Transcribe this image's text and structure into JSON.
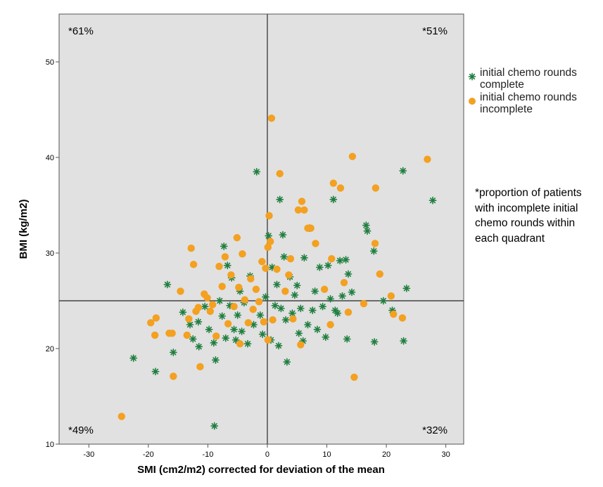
{
  "chart_data": {
    "type": "scatter",
    "xlabel": "SMI (cm2/m2) corrected for deviation of the mean",
    "ylabel": "BMI (kg/m2)",
    "xlim": [
      -35,
      33
    ],
    "ylim": [
      10,
      55
    ],
    "x_ticks": [
      -30,
      -20,
      -10,
      0,
      10,
      20,
      30
    ],
    "y_ticks": [
      10,
      20,
      30,
      40,
      50
    ],
    "reference_lines": {
      "x": 0,
      "y": 25
    },
    "quadrant_labels": {
      "top_left": "*61%",
      "top_right": "*51%",
      "bottom_left": "*49%",
      "bottom_right": "*32%"
    },
    "annotation": "*proportion of patients with incomplete initial chemo rounds within each quadrant",
    "legend_position": "right",
    "colors": {
      "complete": "#1f7f3f",
      "incomplete": "#f4a020",
      "plot_background": "#e1e1e1"
    },
    "series": [
      {
        "name": "initial chemo rounds complete",
        "marker": "star",
        "color": "#1f7f3f",
        "points": [
          [
            -22.5,
            19
          ],
          [
            -18.8,
            17.6
          ],
          [
            -15.8,
            19.6
          ],
          [
            -16.8,
            26.7
          ],
          [
            -14.2,
            23.8
          ],
          [
            -13,
            22.5
          ],
          [
            -12.5,
            21
          ],
          [
            -11.5,
            20.2
          ],
          [
            -11.6,
            22.8
          ],
          [
            -10.5,
            24.4
          ],
          [
            -9.8,
            22
          ],
          [
            -9,
            20.6
          ],
          [
            -8.7,
            18.8
          ],
          [
            -8.9,
            11.9
          ],
          [
            -8,
            25
          ],
          [
            -7.6,
            23.4
          ],
          [
            -7.3,
            30.7
          ],
          [
            -7,
            21.1
          ],
          [
            -6.7,
            28.7
          ],
          [
            -6.3,
            24.5
          ],
          [
            -6,
            27.4
          ],
          [
            -5.6,
            22
          ],
          [
            -5.3,
            20.9
          ],
          [
            -5,
            23.5
          ],
          [
            -4.6,
            26
          ],
          [
            -4.3,
            21.8
          ],
          [
            -3.9,
            24.8
          ],
          [
            -3.3,
            20.5
          ],
          [
            -2.9,
            27.6
          ],
          [
            -2.3,
            22.5
          ],
          [
            -1.8,
            38.5
          ],
          [
            -1.2,
            23.5
          ],
          [
            -0.8,
            21.5
          ],
          [
            -0.3,
            25.4
          ],
          [
            0.2,
            31.8
          ],
          [
            0.6,
            20.9
          ],
          [
            0.8,
            28.5
          ],
          [
            1.3,
            24.5
          ],
          [
            1.6,
            26.7
          ],
          [
            1.9,
            20.3
          ],
          [
            2.1,
            35.6
          ],
          [
            2.3,
            24.2
          ],
          [
            2.6,
            31.9
          ],
          [
            2.8,
            29.6
          ],
          [
            3.1,
            23
          ],
          [
            3.3,
            18.6
          ],
          [
            3.8,
            27.5
          ],
          [
            4.2,
            23.7
          ],
          [
            4.6,
            25.6
          ],
          [
            5,
            26.6
          ],
          [
            5.3,
            21.6
          ],
          [
            5.6,
            24.2
          ],
          [
            6,
            20.8
          ],
          [
            6.2,
            29.5
          ],
          [
            6.8,
            22.5
          ],
          [
            7.1,
            32.6
          ],
          [
            7.6,
            24
          ],
          [
            8,
            26
          ],
          [
            8.4,
            22
          ],
          [
            8.8,
            28.5
          ],
          [
            9.3,
            24.4
          ],
          [
            9.8,
            21.2
          ],
          [
            10.2,
            28.7
          ],
          [
            10.6,
            25.2
          ],
          [
            11.1,
            35.6
          ],
          [
            11.4,
            24
          ],
          [
            11.8,
            23.7
          ],
          [
            12.2,
            29.2
          ],
          [
            12.6,
            25.5
          ],
          [
            13.2,
            29.3
          ],
          [
            13.6,
            27.8
          ],
          [
            13.4,
            21
          ],
          [
            14.2,
            25.9
          ],
          [
            16.6,
            32.9
          ],
          [
            16.8,
            32.3
          ],
          [
            17.9,
            30.2
          ],
          [
            18,
            20.7
          ],
          [
            19.5,
            25
          ],
          [
            21,
            24
          ],
          [
            22.8,
            38.6
          ],
          [
            23.4,
            26.3
          ],
          [
            22.9,
            20.8
          ],
          [
            27.8,
            35.5
          ]
        ]
      },
      {
        "name": "initial chemo rounds incomplete",
        "marker": "circle",
        "color": "#f4a020",
        "points": [
          [
            -24.5,
            12.9
          ],
          [
            -19.6,
            22.7
          ],
          [
            -18.9,
            21.4
          ],
          [
            -18.7,
            23.2
          ],
          [
            -16.5,
            21.6
          ],
          [
            -16,
            21.6
          ],
          [
            -15.8,
            17.1
          ],
          [
            -14.6,
            26
          ],
          [
            -13.5,
            21.4
          ],
          [
            -13.2,
            23.1
          ],
          [
            -12.8,
            30.5
          ],
          [
            -12.4,
            28.8
          ],
          [
            -12,
            23.9
          ],
          [
            -11.6,
            24.3
          ],
          [
            -11.3,
            18.1
          ],
          [
            -10.6,
            25.7
          ],
          [
            -10.1,
            25.3
          ],
          [
            -9.6,
            23.9
          ],
          [
            -9.2,
            24.6
          ],
          [
            -8.6,
            21.3
          ],
          [
            -8.1,
            28.6
          ],
          [
            -7.6,
            26.5
          ],
          [
            -7.1,
            29.6
          ],
          [
            -6.6,
            22.6
          ],
          [
            -6.1,
            27.7
          ],
          [
            -5.6,
            24.4
          ],
          [
            -5.1,
            31.6
          ],
          [
            -4.8,
            26.4
          ],
          [
            -4.6,
            20.5
          ],
          [
            -4.2,
            29.9
          ],
          [
            -3.8,
            25.1
          ],
          [
            -3.2,
            22.7
          ],
          [
            -2.8,
            27.3
          ],
          [
            -2.4,
            24.1
          ],
          [
            -1.9,
            26.2
          ],
          [
            -1.4,
            24.9
          ],
          [
            -0.9,
            29.1
          ],
          [
            -0.6,
            22.8
          ],
          [
            -0.3,
            28.4
          ],
          [
            0.1,
            20.9
          ],
          [
            0.1,
            30.6
          ],
          [
            0.3,
            33.9
          ],
          [
            0.5,
            31.2
          ],
          [
            0.7,
            44.1
          ],
          [
            0.9,
            23
          ],
          [
            1.6,
            28.3
          ],
          [
            2.1,
            38.3
          ],
          [
            3,
            26
          ],
          [
            3.6,
            27.7
          ],
          [
            3.9,
            29.4
          ],
          [
            4.3,
            23.1
          ],
          [
            5.2,
            34.5
          ],
          [
            5.6,
            20.4
          ],
          [
            5.8,
            35.4
          ],
          [
            6.2,
            34.5
          ],
          [
            6.8,
            32.6
          ],
          [
            7.3,
            32.6
          ],
          [
            8.1,
            31
          ],
          [
            9.6,
            26.2
          ],
          [
            10.6,
            22.5
          ],
          [
            10.8,
            29.4
          ],
          [
            11.1,
            37.3
          ],
          [
            12.3,
            36.8
          ],
          [
            12.9,
            26.9
          ],
          [
            13.6,
            23.8
          ],
          [
            14.3,
            40.1
          ],
          [
            14.6,
            17
          ],
          [
            16.2,
            24.7
          ],
          [
            18.1,
            31
          ],
          [
            18.2,
            36.8
          ],
          [
            18.9,
            27.8
          ],
          [
            20.8,
            25.5
          ],
          [
            21.2,
            23.6
          ],
          [
            22.7,
            23.2
          ],
          [
            26.9,
            39.8
          ]
        ]
      }
    ]
  }
}
